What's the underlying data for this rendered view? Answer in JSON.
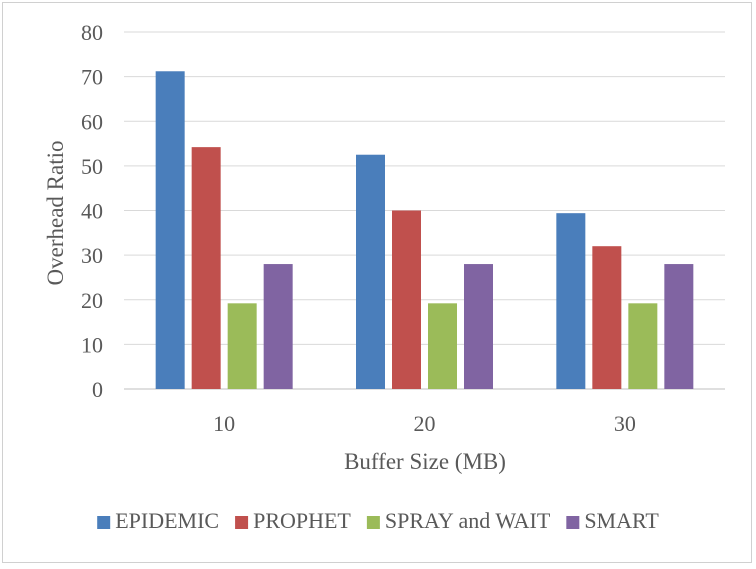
{
  "chart_data": {
    "type": "bar",
    "title": "",
    "xlabel": "Buffer Size (MB)",
    "ylabel": "Overhead Ratio",
    "categories": [
      "10",
      "20",
      "30"
    ],
    "ylim": [
      0,
      80
    ],
    "yticks": [
      0,
      10,
      20,
      30,
      40,
      50,
      60,
      70,
      80
    ],
    "grid": true,
    "legend_position": "bottom",
    "series": [
      {
        "name": "EPIDEMIC",
        "color": "#4a7ebb",
        "values": [
          71.2,
          52.5,
          39.4
        ]
      },
      {
        "name": "PROPHET",
        "color": "#c0504d",
        "values": [
          54.2,
          40.0,
          32.0
        ]
      },
      {
        "name": "SPRAY and WAIT",
        "color": "#9bbb59",
        "values": [
          19.2,
          19.2,
          19.2
        ]
      },
      {
        "name": "SMART",
        "color": "#8064a2",
        "values": [
          28.0,
          28.0,
          28.0
        ]
      }
    ]
  }
}
